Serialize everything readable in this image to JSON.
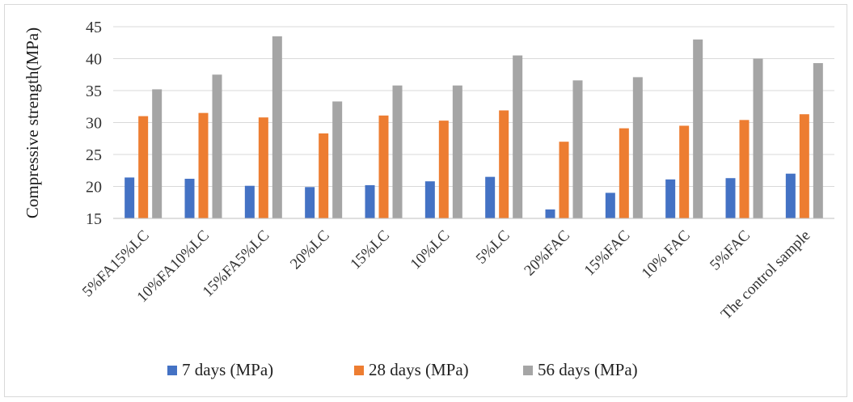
{
  "chart_data": {
    "type": "bar",
    "ylabel": "Compressive strength(MPa)",
    "xlabel": "",
    "ylim": [
      15,
      45
    ],
    "yticks": [
      "15",
      "20",
      "25",
      "30",
      "35",
      "40",
      "45"
    ],
    "categories": [
      "5%FA15%LC",
      "10%FA10%LC",
      "15%FA5%LC",
      "20%LC",
      "15%LC",
      "10%LC",
      "5%LC",
      "20%FAC",
      "15%FAC",
      "10% FAC",
      "5%FAC",
      "The control sample"
    ],
    "series": [
      {
        "name": "7 days (MPa)",
        "color": "#4472c4",
        "values": [
          21.4,
          21.2,
          20.1,
          19.9,
          20.2,
          20.8,
          21.5,
          16.4,
          19.0,
          21.1,
          21.3,
          22.0
        ]
      },
      {
        "name": "28 days (MPa)",
        "color": "#ed7d31",
        "values": [
          31.0,
          31.5,
          30.8,
          28.3,
          31.1,
          30.3,
          31.9,
          27.0,
          29.1,
          29.5,
          30.4,
          31.3
        ]
      },
      {
        "name": "56 days (MPa)",
        "color": "#a5a5a5",
        "values": [
          35.2,
          37.5,
          43.5,
          33.3,
          35.8,
          35.8,
          40.5,
          36.6,
          37.1,
          43.0,
          40.0,
          39.3
        ]
      }
    ],
    "grid": true,
    "legend_position": "bottom"
  }
}
